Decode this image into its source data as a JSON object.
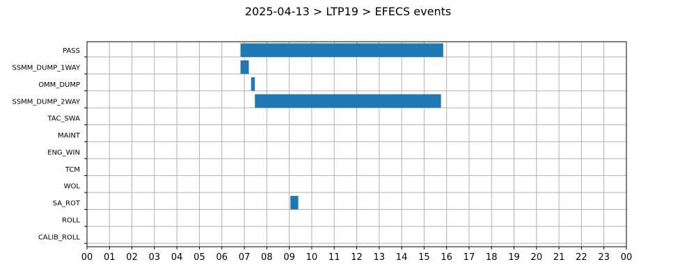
{
  "chart_data": {
    "type": "bar",
    "orientation": "horizontal-gantt",
    "title": "2025-04-13 > LTP19 > EFECS events",
    "xlabel": "",
    "ylabel": "",
    "xlim": [
      0,
      24
    ],
    "x_ticks": [
      "00",
      "01",
      "02",
      "03",
      "04",
      "05",
      "06",
      "07",
      "08",
      "09",
      "10",
      "11",
      "12",
      "13",
      "14",
      "15",
      "16",
      "17",
      "18",
      "19",
      "20",
      "21",
      "22",
      "23",
      "00"
    ],
    "categories": [
      "PASS",
      "SSMM_DUMP_1WAY",
      "OMM_DUMP",
      "SSMM_DUMP_2WAY",
      "TAC_SWA",
      "MAINT",
      "ENG_WIN",
      "TCM",
      "WOL",
      "SA_ROT",
      "ROLL",
      "CALIB_ROLL"
    ],
    "grid": true,
    "color": "#1f77b4",
    "events": [
      {
        "category": "PASS",
        "start": 6.83,
        "end": 15.85
      },
      {
        "category": "SSMM_DUMP_1WAY",
        "start": 6.83,
        "end": 7.2
      },
      {
        "category": "OMM_DUMP",
        "start": 7.3,
        "end": 7.47
      },
      {
        "category": "SSMM_DUMP_2WAY",
        "start": 7.47,
        "end": 15.75
      },
      {
        "category": "SA_ROT",
        "start": 9.05,
        "end": 9.4
      }
    ]
  }
}
